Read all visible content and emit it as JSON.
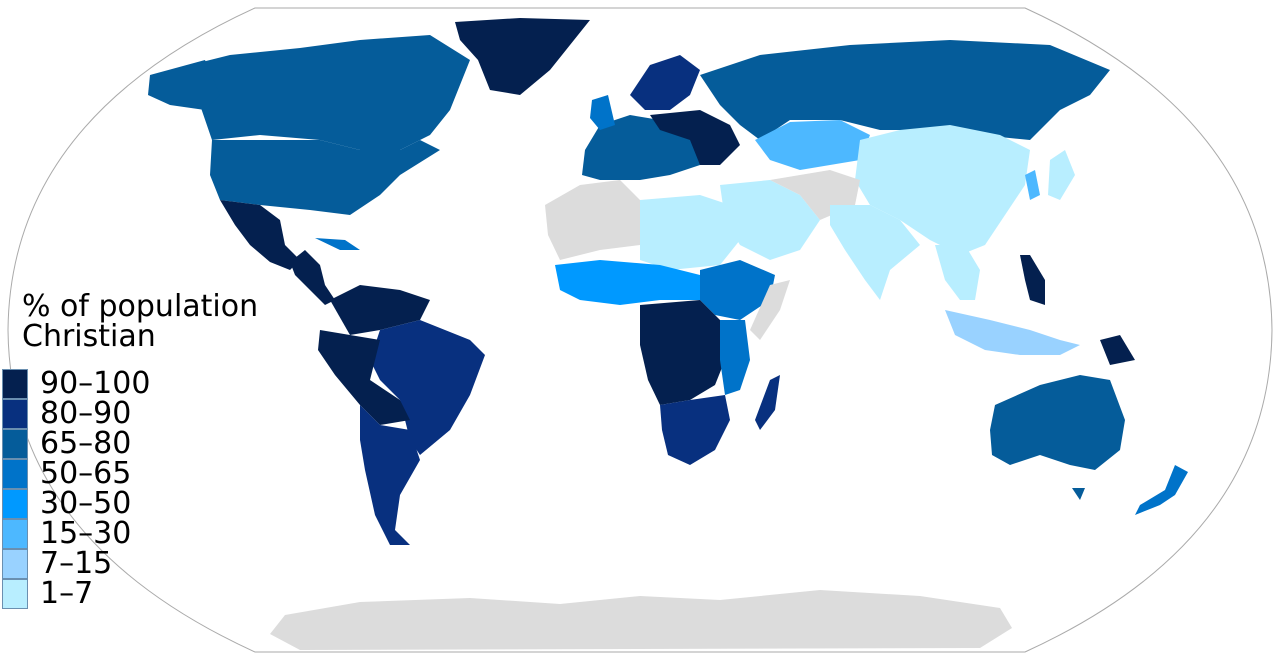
{
  "legend": {
    "title_line1": "% of population",
    "title_line2": "Christian",
    "items": [
      {
        "label": "90–100",
        "color": "#04204f"
      },
      {
        "label": "80–90",
        "color": "#08307f"
      },
      {
        "label": "65–80",
        "color": "#055c9a"
      },
      {
        "label": "50–65",
        "color": "#0073c9"
      },
      {
        "label": "30–50",
        "color": "#0099ff"
      },
      {
        "label": "15–30",
        "color": "#4db8ff"
      },
      {
        "label": "7–15",
        "color": "#99d2ff"
      },
      {
        "label": "1–7",
        "color": "#b8eeff"
      }
    ]
  },
  "colors": {
    "no_data": "#dcdcdc",
    "ocean": "#ffffff",
    "frame": "#aaaaaa"
  }
}
